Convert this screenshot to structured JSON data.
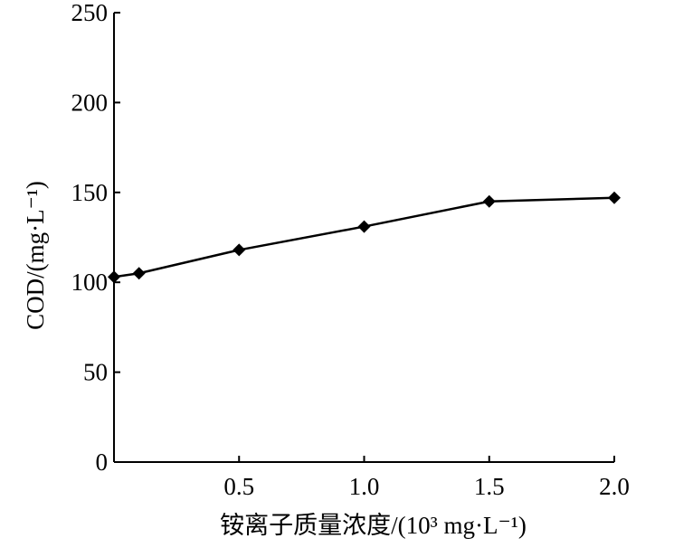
{
  "chart_data": {
    "type": "line",
    "xlabel": "铵离子质量浓度/(10³ mg·L⁻¹)",
    "ylabel": "COD/(mg·L⁻¹)",
    "xlim": [
      0,
      2.0
    ],
    "ylim": [
      0,
      250
    ],
    "x_ticks": [
      "0.5",
      "1.0",
      "1.5",
      "2.0"
    ],
    "y_ticks": [
      "0",
      "50",
      "100",
      "150",
      "200",
      "250"
    ],
    "grid": false,
    "series": [
      {
        "x": [
          0,
          0.1,
          0.5,
          1.0,
          1.5,
          2.0
        ],
        "values": [
          103,
          105,
          118,
          131,
          145,
          147
        ]
      }
    ]
  }
}
